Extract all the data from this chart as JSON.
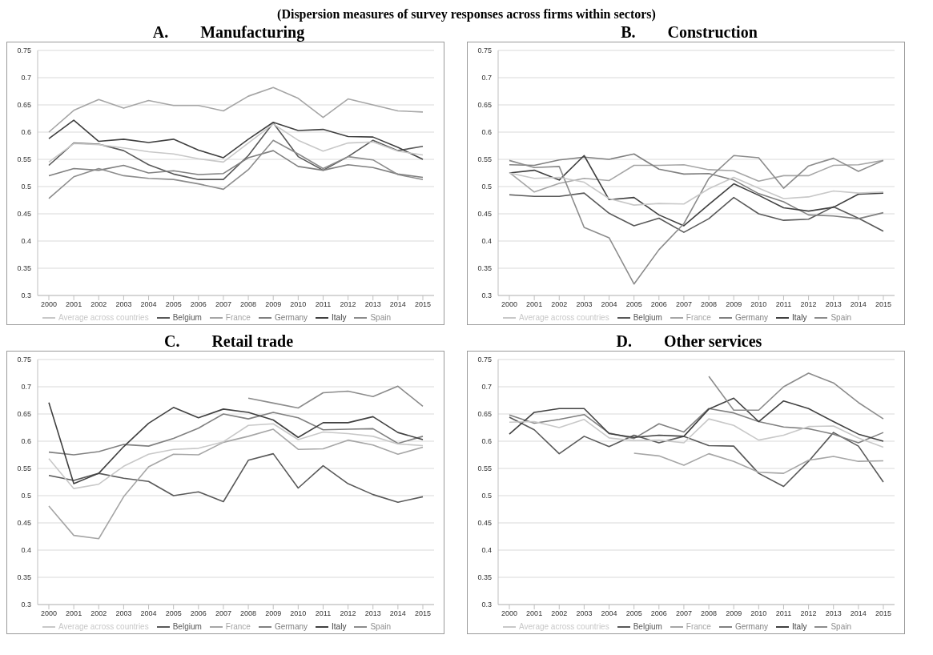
{
  "chart_data": [
    {
      "type": "line",
      "title": "A.  Manufacturing",
      "annotations": [
        "(Dispersion measures of survey responses across firms within sectors)"
      ],
      "categories": [
        "2000",
        "2001",
        "2002",
        "2003",
        "2004",
        "2005",
        "2006",
        "2007",
        "2008",
        "2009",
        "2010",
        "2011",
        "2012",
        "2013",
        "2014",
        "2015"
      ],
      "ylim": [
        0.3,
        0.75
      ],
      "yticks": [
        0.3,
        0.35,
        0.4,
        0.45,
        0.5,
        0.55,
        0.6,
        0.65,
        0.7,
        0.75
      ],
      "grid": "y",
      "legend": "bottom",
      "marker": "none",
      "series": [
        {
          "name": "Belgium",
          "color": "#595959",
          "values": [
            0.539,
            0.58,
            0.578,
            0.566,
            0.54,
            0.523,
            0.513,
            0.513,
            0.557,
            0.617,
            0.555,
            0.53,
            0.555,
            0.585,
            0.566,
            0.574
          ]
        },
        {
          "name": "France",
          "color": "#a6a6a6",
          "values": [
            0.6,
            0.64,
            0.66,
            0.644,
            0.658,
            0.649,
            0.649,
            0.639,
            0.666,
            0.682,
            0.662,
            0.627,
            0.661,
            0.65,
            0.639,
            0.637
          ]
        },
        {
          "name": "Germany",
          "color": "#808080",
          "values": [
            0.52,
            0.533,
            0.53,
            0.539,
            0.525,
            0.529,
            0.522,
            0.524,
            0.553,
            0.566,
            0.537,
            0.53,
            0.54,
            0.535,
            0.523,
            0.517
          ]
        },
        {
          "name": "Italy",
          "color": "#404040",
          "values": [
            0.588,
            0.622,
            0.583,
            0.587,
            0.581,
            0.587,
            0.567,
            0.553,
            0.587,
            0.618,
            0.603,
            0.605,
            0.592,
            0.591,
            0.572,
            0.55
          ]
        },
        {
          "name": "Spain",
          "color": "#8c8c8c",
          "values": [
            0.478,
            0.518,
            0.533,
            0.52,
            0.515,
            0.513,
            0.505,
            0.495,
            0.531,
            0.585,
            0.56,
            0.533,
            0.555,
            0.549,
            0.522,
            0.513
          ]
        },
        {
          "name": "Average across countries",
          "color": "#c8c8c8",
          "values": [
            0.545,
            0.579,
            0.577,
            0.571,
            0.564,
            0.56,
            0.551,
            0.545,
            0.58,
            0.615,
            0.585,
            0.565,
            0.58,
            0.582,
            0.565,
            0.558
          ]
        }
      ]
    },
    {
      "type": "line",
      "title": "B.  Construction",
      "categories": [
        "2000",
        "2001",
        "2002",
        "2003",
        "2004",
        "2005",
        "2006",
        "2007",
        "2008",
        "2009",
        "2010",
        "2011",
        "2012",
        "2013",
        "2014",
        "2015"
      ],
      "ylim": [
        0.3,
        0.75
      ],
      "yticks": [
        0.3,
        0.35,
        0.4,
        0.45,
        0.5,
        0.55,
        0.6,
        0.65,
        0.7,
        0.75
      ],
      "grid": "y",
      "legend": "bottom",
      "marker": "none",
      "series": [
        {
          "name": "Belgium",
          "color": "#595959",
          "values": [
            0.485,
            0.482,
            0.482,
            0.488,
            0.451,
            0.428,
            0.442,
            0.416,
            0.441,
            0.48,
            0.45,
            0.438,
            0.44,
            0.463,
            0.442,
            0.418
          ]
        },
        {
          "name": "France",
          "color": "#a6a6a6",
          "values": [
            0.526,
            0.49,
            0.506,
            0.515,
            0.511,
            0.539,
            0.539,
            0.54,
            0.531,
            0.529,
            0.51,
            0.52,
            0.52,
            0.539,
            0.54,
            0.548
          ]
        },
        {
          "name": "Germany",
          "color": "#808080",
          "values": [
            0.54,
            0.539,
            0.549,
            0.554,
            0.55,
            0.56,
            0.532,
            0.523,
            0.524,
            0.512,
            0.487,
            0.472,
            0.448,
            0.446,
            0.441,
            0.452
          ]
        },
        {
          "name": "Italy",
          "color": "#404040",
          "values": [
            0.525,
            0.53,
            0.512,
            0.557,
            0.476,
            0.48,
            0.448,
            0.428,
            0.467,
            0.505,
            0.484,
            0.461,
            0.455,
            0.462,
            0.486,
            0.488
          ]
        },
        {
          "name": "Spain",
          "color": "#8c8c8c",
          "values": [
            0.548,
            0.535,
            0.537,
            0.425,
            0.406,
            0.321,
            0.384,
            0.432,
            0.515,
            0.557,
            0.553,
            0.497,
            0.538,
            0.552,
            0.528,
            0.548
          ]
        },
        {
          "name": "Average across countries",
          "color": "#c8c8c8",
          "values": [
            0.525,
            0.515,
            0.517,
            0.508,
            0.478,
            0.466,
            0.469,
            0.468,
            0.496,
            0.517,
            0.497,
            0.478,
            0.481,
            0.492,
            0.488,
            0.49
          ]
        }
      ]
    },
    {
      "type": "line",
      "title": "C.  Retail trade",
      "categories": [
        "2000",
        "2001",
        "2002",
        "2003",
        "2004",
        "2005",
        "2006",
        "2007",
        "2008",
        "2009",
        "2010",
        "2011",
        "2012",
        "2013",
        "2014",
        "2015"
      ],
      "ylim": [
        0.3,
        0.75
      ],
      "yticks": [
        0.3,
        0.35,
        0.4,
        0.45,
        0.5,
        0.55,
        0.6,
        0.65,
        0.7,
        0.75
      ],
      "grid": "y",
      "legend": "bottom",
      "marker": "none",
      "series": [
        {
          "name": "Belgium",
          "color": "#595959",
          "values": [
            0.537,
            0.528,
            0.541,
            0.532,
            0.526,
            0.5,
            0.507,
            0.489,
            0.565,
            0.577,
            0.514,
            0.555,
            0.522,
            0.502,
            0.488,
            0.498
          ]
        },
        {
          "name": "France",
          "color": "#a6a6a6",
          "values": [
            0.481,
            0.427,
            0.421,
            0.498,
            0.553,
            0.576,
            0.575,
            0.598,
            0.609,
            0.622,
            0.585,
            0.586,
            0.602,
            0.593,
            0.576,
            0.589
          ]
        },
        {
          "name": "Germany",
          "color": "#808080",
          "values": [
            0.58,
            0.575,
            0.581,
            0.594,
            0.591,
            0.605,
            0.624,
            0.65,
            0.641,
            0.653,
            0.643,
            0.621,
            0.622,
            0.623,
            0.596,
            0.609
          ]
        },
        {
          "name": "Italy",
          "color": "#404040",
          "values": [
            0.671,
            0.522,
            0.541,
            0.59,
            0.633,
            0.662,
            0.643,
            0.659,
            0.653,
            0.639,
            0.607,
            0.634,
            0.634,
            0.645,
            0.616,
            0.603
          ]
        },
        {
          "name": "Spain",
          "color": "#8c8c8c",
          "values": [
            null,
            null,
            null,
            null,
            null,
            null,
            null,
            null,
            0.679,
            0.67,
            0.661,
            0.689,
            0.692,
            0.682,
            0.701,
            0.664
          ]
        },
        {
          "name": "Average across countries",
          "color": "#c8c8c8",
          "values": [
            0.568,
            0.513,
            0.521,
            0.554,
            0.576,
            0.585,
            0.587,
            0.599,
            0.629,
            0.632,
            0.603,
            0.617,
            0.614,
            0.609,
            0.595,
            0.592
          ]
        }
      ]
    },
    {
      "type": "line",
      "title": "D.  Other services",
      "categories": [
        "2000",
        "2001",
        "2002",
        "2003",
        "2004",
        "2005",
        "2006",
        "2007",
        "2008",
        "2009",
        "2010",
        "2011",
        "2012",
        "2013",
        "2014",
        "2015"
      ],
      "ylim": [
        0.3,
        0.75
      ],
      "yticks": [
        0.3,
        0.35,
        0.4,
        0.45,
        0.5,
        0.55,
        0.6,
        0.65,
        0.7,
        0.75
      ],
      "grid": "y",
      "legend": "bottom",
      "marker": "none",
      "series": [
        {
          "name": "Belgium",
          "color": "#595959",
          "values": [
            0.644,
            0.621,
            0.577,
            0.609,
            0.59,
            0.611,
            0.597,
            0.609,
            0.592,
            0.591,
            0.541,
            0.517,
            0.563,
            0.616,
            0.591,
            0.525
          ]
        },
        {
          "name": "France",
          "color": "#a6a6a6",
          "values": [
            null,
            null,
            null,
            null,
            null,
            0.578,
            0.573,
            0.556,
            0.577,
            0.563,
            0.543,
            0.541,
            0.565,
            0.572,
            0.563,
            0.564
          ]
        },
        {
          "name": "Germany",
          "color": "#808080",
          "values": [
            0.648,
            0.633,
            0.64,
            0.649,
            0.615,
            0.605,
            0.632,
            0.617,
            0.66,
            0.652,
            0.636,
            0.626,
            0.623,
            0.613,
            0.597,
            0.616
          ]
        },
        {
          "name": "Italy",
          "color": "#404040",
          "values": [
            0.613,
            0.653,
            0.66,
            0.66,
            0.614,
            0.607,
            0.611,
            0.609,
            0.659,
            0.679,
            0.636,
            0.674,
            0.66,
            0.636,
            0.613,
            0.6
          ]
        },
        {
          "name": "Spain",
          "color": "#8c8c8c",
          "values": [
            null,
            null,
            null,
            null,
            null,
            null,
            null,
            null,
            0.719,
            0.657,
            0.657,
            0.7,
            0.725,
            0.707,
            0.671,
            0.641
          ]
        },
        {
          "name": "Average across countries",
          "color": "#c8c8c8",
          "values": [
            0.635,
            0.636,
            0.625,
            0.64,
            0.606,
            0.601,
            0.602,
            0.597,
            0.641,
            0.629,
            0.602,
            0.611,
            0.627,
            0.628,
            0.606,
            0.589
          ]
        }
      ]
    }
  ]
}
